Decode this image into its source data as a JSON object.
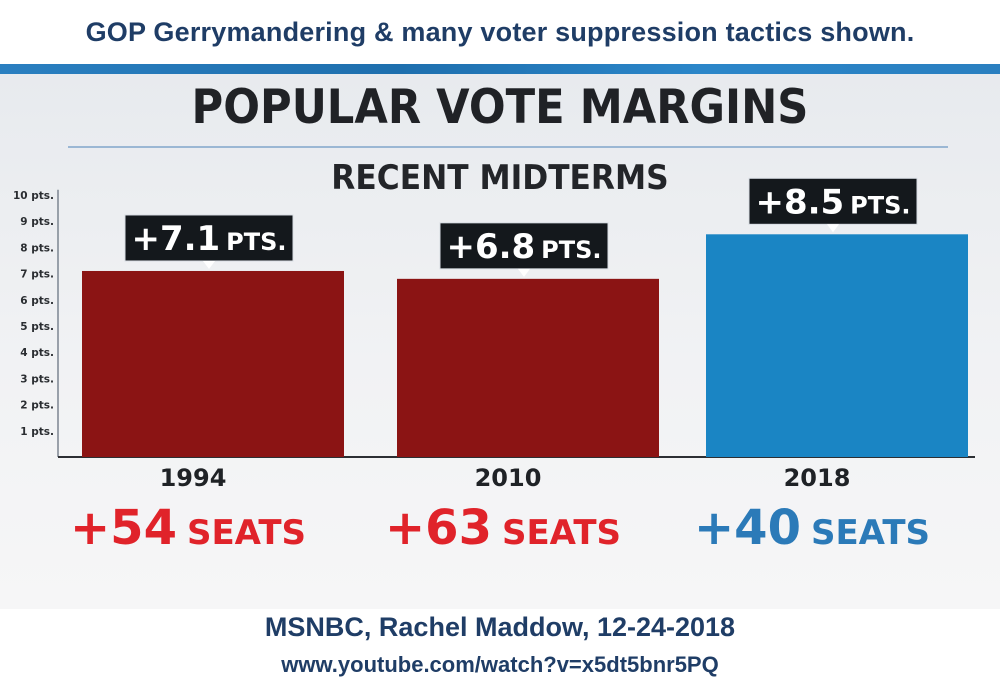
{
  "caption_top": "GOP Gerrymandering & many voter suppression tactics shown.",
  "caption_bottom": "MSNBC, Rachel Maddow, 12-24-2018",
  "caption_url": "www.youtube.com/watch?v=x5dt5bnr5PQ",
  "colors": {
    "caption": "#1f3d66",
    "gop_bar": "#8b1414",
    "dem_bar": "#1a85c4",
    "gop_seats": "#e0232a",
    "dem_seats": "#2b7ab8",
    "label_box": "#14181c"
  },
  "chart_data": {
    "type": "bar",
    "title": "POPULAR VOTE MARGINS",
    "subtitle": "RECENT MIDTERMS",
    "categories": [
      "1994",
      "2010",
      "2018"
    ],
    "values": [
      7.1,
      6.8,
      8.5
    ],
    "bar_colors": [
      "#8b1414",
      "#8b1414",
      "#1a85c4"
    ],
    "data_labels": [
      {
        "num": "+7.1",
        "unit": "PTS."
      },
      {
        "num": "+6.8",
        "unit": "PTS."
      },
      {
        "num": "+8.5",
        "unit": "PTS."
      }
    ],
    "seats": [
      {
        "num": "+54",
        "unit": "SEATS",
        "color": "#e0232a"
      },
      {
        "num": "+63",
        "unit": "SEATS",
        "color": "#e0232a"
      },
      {
        "num": "+40",
        "unit": "SEATS",
        "color": "#2b7ab8"
      }
    ],
    "y_ticks": [
      "1 pts.",
      "2 pts.",
      "3 pts.",
      "4 pts.",
      "5 pts.",
      "6 pts.",
      "7 pts.",
      "8 pts.",
      "9 pts.",
      "10 pts."
    ],
    "ylim": [
      0,
      10
    ],
    "grid": false,
    "legend": "none"
  }
}
